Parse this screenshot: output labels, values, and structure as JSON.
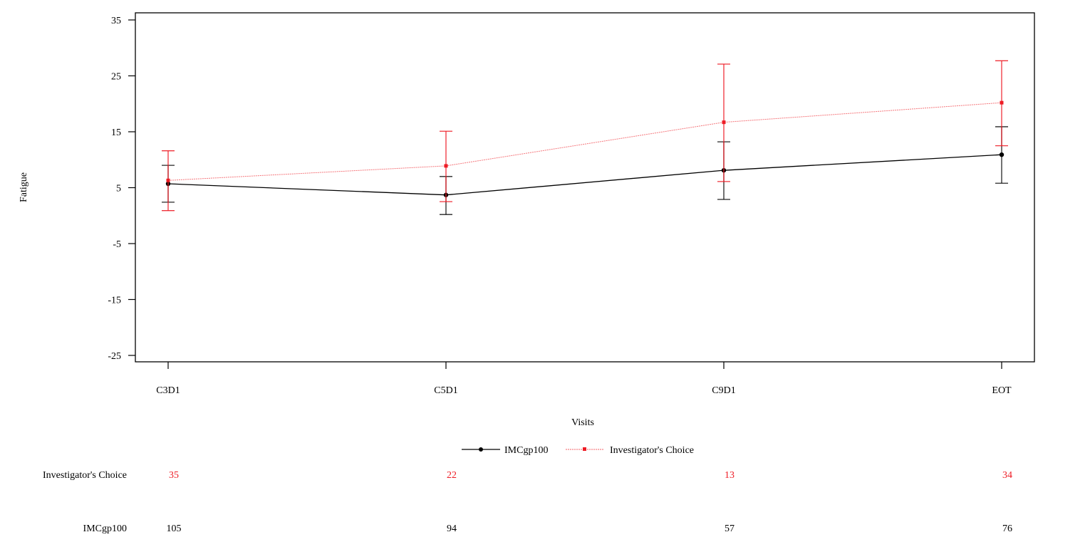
{
  "chart_data": {
    "type": "line",
    "title": "",
    "xlabel": "Visits",
    "ylabel": "Fatigue",
    "ylim": [
      -25,
      35
    ],
    "yticks": [
      35,
      25,
      15,
      5,
      -5,
      -15,
      -25
    ],
    "ytick_labels": [
      "35",
      "25",
      "15",
      "5",
      "-5",
      "-15",
      "-25"
    ],
    "categories": [
      "C3D1",
      "C5D1",
      "C9D1",
      "EOT"
    ],
    "grid": false,
    "legend_placement": "bottom",
    "series": [
      {
        "name": "IMCgp100",
        "color": "#000000",
        "marker": "circle",
        "line_style": "solid",
        "values": [
          5.7,
          3.7,
          8.1,
          10.9
        ],
        "lower": [
          2.4,
          0.2,
          2.9,
          5.8
        ],
        "upper": [
          9.0,
          7.0,
          13.2,
          15.9
        ],
        "n_at_visit": [
          "105",
          "94",
          "57",
          "76"
        ]
      },
      {
        "name": "Investigator's Choice",
        "color": "#ee1c25",
        "marker": "square",
        "line_style": "dotted",
        "values": [
          6.3,
          8.9,
          16.7,
          20.2
        ],
        "lower": [
          0.9,
          2.5,
          6.1,
          12.5
        ],
        "upper": [
          11.6,
          15.1,
          27.1,
          27.7
        ],
        "n_at_visit": [
          "35",
          "22",
          "13",
          "34"
        ]
      }
    ],
    "n_table_rows": [
      "Investigator's Choice",
      "IMCgp100"
    ]
  }
}
